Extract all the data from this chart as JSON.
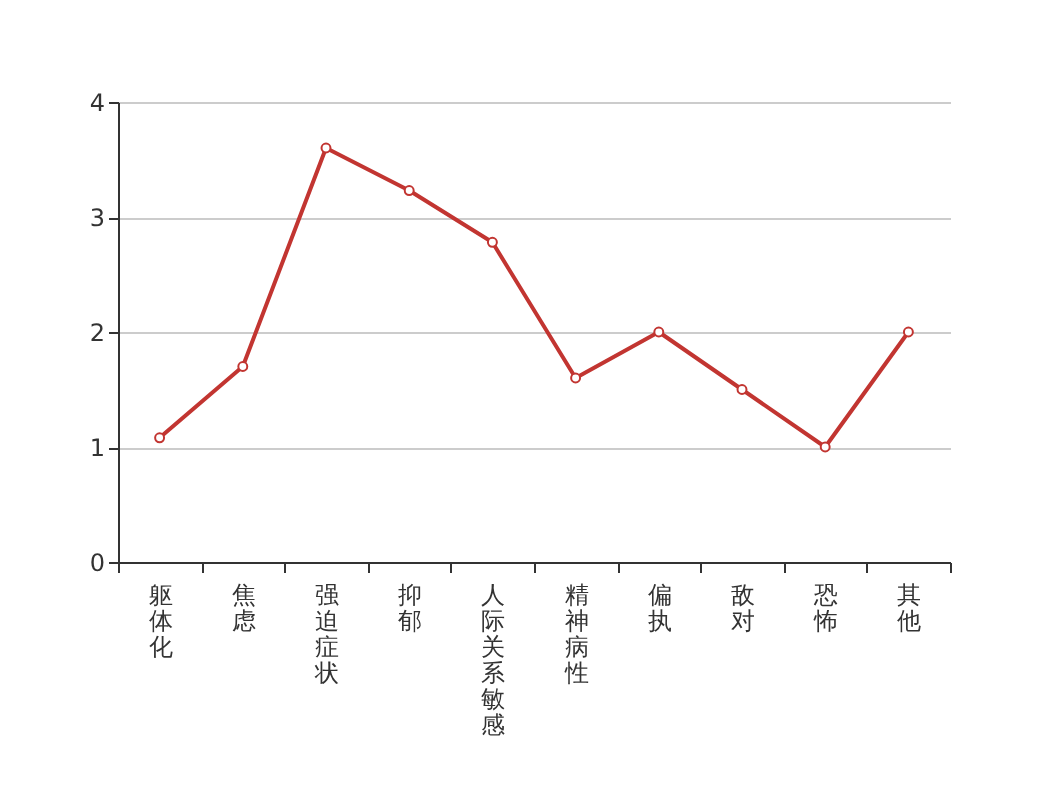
{
  "chart_data": {
    "type": "line",
    "categories": [
      "躯体化",
      "焦虑",
      "强迫症状",
      "抑郁",
      "人际关系敏感",
      "精神病性",
      "偏执",
      "敌对",
      "恐怖",
      "其他"
    ],
    "series": [
      {
        "color": "#c23531",
        "values": [
          1.08,
          1.7,
          3.6,
          3.23,
          2.78,
          1.6,
          2.0,
          1.5,
          1.0,
          2.0
        ]
      }
    ],
    "ylim": [
      0,
      4
    ],
    "yticks": [
      0,
      1,
      2,
      3,
      4
    ],
    "grid": "y",
    "marker": "circle",
    "line_style": "solid",
    "legend": false
  }
}
